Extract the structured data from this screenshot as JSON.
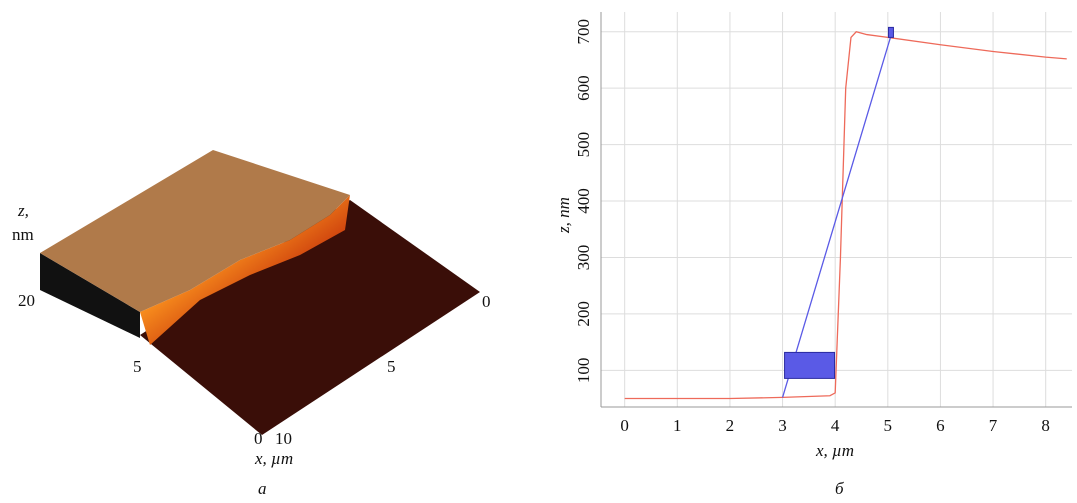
{
  "figure_a": {
    "z_label": "z,",
    "z_unit": "nm",
    "z_tick": "20",
    "left_tick": "5",
    "right_zero": "0",
    "right_tick": "5",
    "bottom_zero": "0",
    "bottom_ten": "10",
    "x_label": "x, µm",
    "caption": "а"
  },
  "chart_data": {
    "type": "line",
    "caption": "б",
    "xlabel": "x, µm",
    "ylabel": "z, nm",
    "xlim": [
      -0.45,
      8.5
    ],
    "ylim": [
      35,
      735
    ],
    "xticks": [
      0,
      1,
      2,
      3,
      4,
      5,
      6,
      7,
      8
    ],
    "yticks": [
      100,
      200,
      300,
      400,
      500,
      600,
      700
    ],
    "grid": true,
    "series": [
      {
        "color": "#ee6a5a",
        "x": [
          0,
          1,
          2,
          3,
          3.9,
          4.0,
          4.1,
          4.2,
          4.3,
          4.4,
          4.6,
          5,
          6,
          7,
          8,
          8.4
        ],
        "values": [
          50,
          50,
          50,
          52,
          55,
          60,
          300,
          600,
          690,
          700,
          695,
          690,
          677,
          665,
          655,
          652
        ]
      },
      {
        "color": "#5a5ae6",
        "x": [
          3.0,
          5.05
        ],
        "values": [
          52,
          690
        ]
      }
    ]
  }
}
